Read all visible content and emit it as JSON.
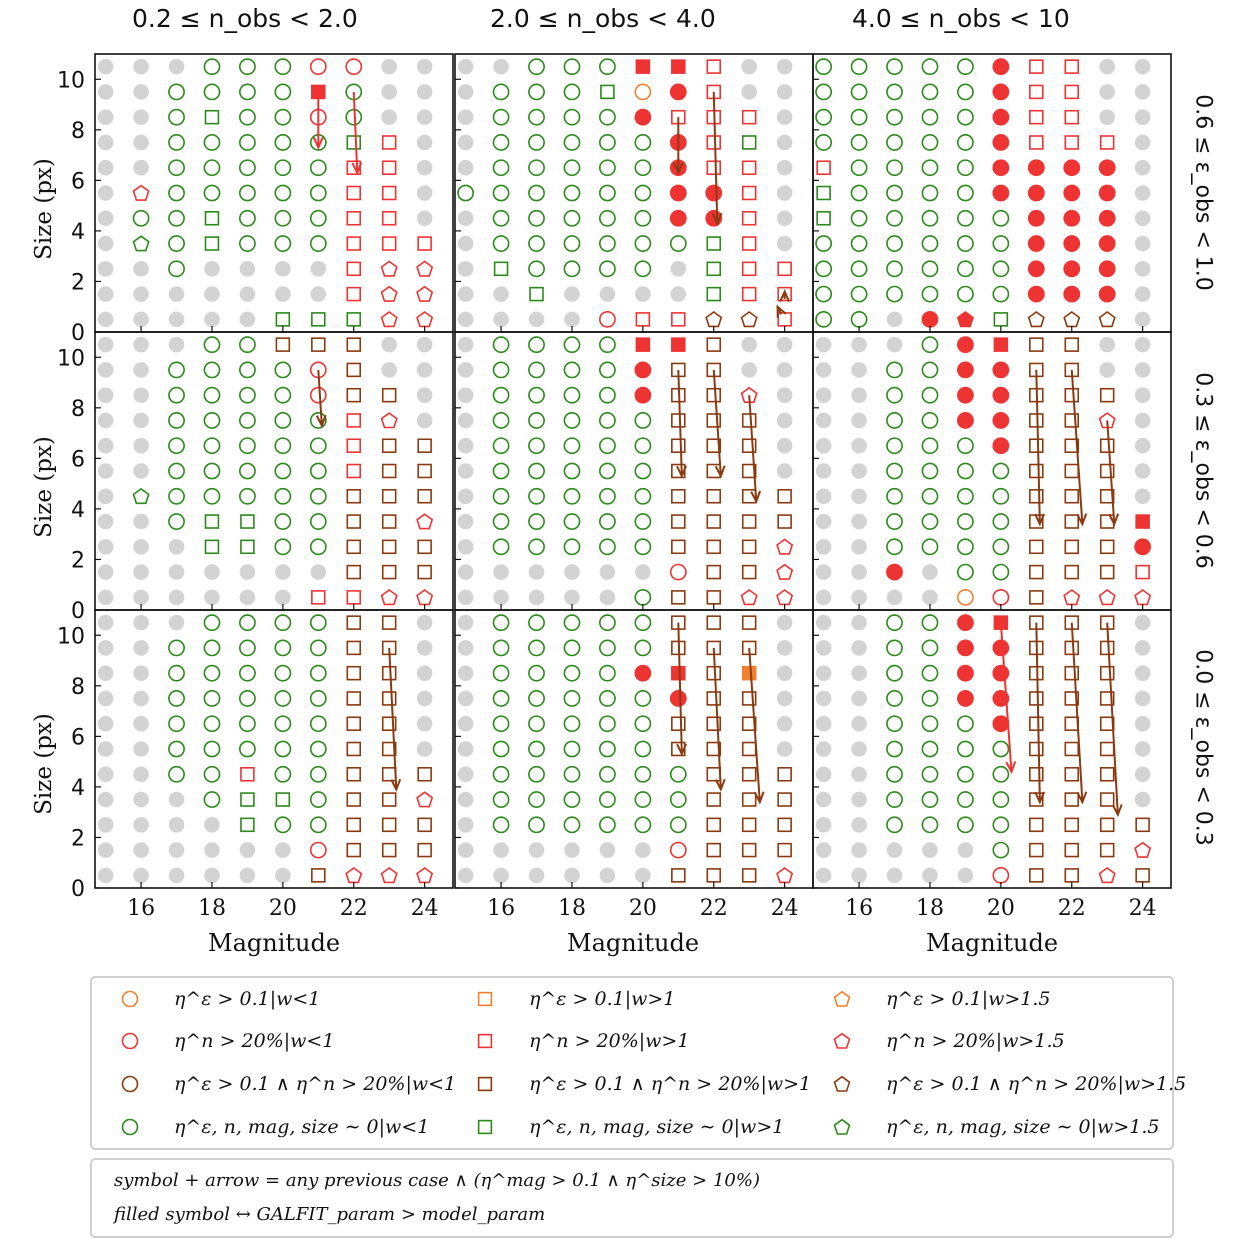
{
  "chart_data": {
    "type": "scatter",
    "column_titles": [
      "0.2 ≤ n_obs < 2.0",
      "2.0 ≤ n_obs < 4.0",
      "4.0 ≤ n_obs < 10"
    ],
    "row_titles": [
      "0.6 ≤ ε_obs < 1.0",
      "0.3 ≤ ε_obs < 0.6",
      "0.0 ≤ ε_obs < 0.3"
    ],
    "xlabel": "Magnitude",
    "ylabel": "Size (px)",
    "xlim": [
      14.7,
      24.8
    ],
    "ylim": [
      0,
      11
    ],
    "xticks": [
      "16",
      "18",
      "20",
      "22",
      "24"
    ],
    "yticks": [
      "0",
      "2",
      "4",
      "6",
      "8",
      "10"
    ],
    "grid_magnitudes": [
      15,
      16,
      17,
      18,
      19,
      20,
      21,
      22,
      23,
      24
    ],
    "grid_sizes": [
      0.5,
      1.5,
      2.5,
      3.5,
      4.5,
      5.5,
      6.5,
      7.5,
      8.5,
      9.5,
      10.5
    ],
    "colors": {
      "empty": "#d3d3d3",
      "orange": "#f08030",
      "red": "#ee3333",
      "brown": "#8b3a10",
      "green": "#2a8a1a"
    },
    "legend": [
      {
        "shape": "circle",
        "color": "orange",
        "label": "η^ε > 0.1|w<1"
      },
      {
        "shape": "square",
        "color": "orange",
        "label": "η^ε > 0.1|w>1"
      },
      {
        "shape": "pentagon",
        "color": "orange",
        "label": "η^ε > 0.1|w>1.5"
      },
      {
        "shape": "circle",
        "color": "red",
        "label": "η^n > 20%|w<1"
      },
      {
        "shape": "square",
        "color": "red",
        "label": "η^n > 20%|w>1"
      },
      {
        "shape": "pentagon",
        "color": "red",
        "label": "η^n > 20%|w>1.5"
      },
      {
        "shape": "circle",
        "color": "brown",
        "label": "η^ε > 0.1 ∧ η^n > 20%|w<1"
      },
      {
        "shape": "square",
        "color": "brown",
        "label": "η^ε > 0.1 ∧ η^n > 20%|w>1"
      },
      {
        "shape": "pentagon",
        "color": "brown",
        "label": "η^ε > 0.1 ∧ η^n > 20%|w>1.5"
      },
      {
        "shape": "circle",
        "color": "green",
        "label": "η^ε, n, mag, size ∼ 0|w<1"
      },
      {
        "shape": "square",
        "color": "green",
        "label": "η^ε, n, mag, size ∼ 0|w>1"
      },
      {
        "shape": "pentagon",
        "color": "green",
        "label": "η^ε, n, mag, size ∼ 0|w>1.5"
      }
    ],
    "notes": [
      "symbol + arrow = any previous case ∧ (η^mag > 0.1 ∧ η^size > 10%)",
      "filled symbol ↔ GALFIT_param > model_param"
    ],
    "panels": [
      {
        "row": 0,
        "col": 0,
        "cols": {
          "15": "...........",
          "16": "...GCP.....",
          "17": "..CCCCCCCC.",
          "18": "...SSCCCSCC",
          "19": "...CCCCCCCC",
          "20": "S..CCCCCCCC",
          "21": "S..CCCCCOFO",
          "22": "SQQQQQQSCCO",
          "23": "PPPQQQQQ...",
          "24": "PPPQ......."
        },
        "arrows": [
          {
            "color": "red",
            "x0": 21,
            "y0": 9.5,
            "x1": 21,
            "y1": 7.3
          },
          {
            "color": "red",
            "x0": 22,
            "y0": 9.5,
            "x1": 22.1,
            "y1": 6.3
          }
        ]
      },
      {
        "row": 0,
        "col": 1,
        "cols": {
          "15": ".....C.....",
          "16": "..SCCCCCCC.",
          "17": ".SCCCCCCCCC",
          "18": "..CCCCCCCCC",
          "19": "X.CCCCCCCSC",
          "20": "Q.CCCCCCfoF",
          "21": "Q..CffffQfF",
          "22": "YSSSffQQQQQ",
          "23": "YTTTTTTSQ..",
          "24": "QQQ........"
        },
        "arrows": [
          {
            "color": "brown",
            "x0": 21,
            "y0": 8.5,
            "x1": 21,
            "y1": 6.3
          },
          {
            "color": "brown",
            "x0": 22,
            "y0": 9.5,
            "x1": 22.1,
            "y1": 4.3
          },
          {
            "color": "brown",
            "x0": 23.9,
            "y0": 0.7,
            "x1": 23.8,
            "y1": 1.0
          },
          {
            "color": "brown",
            "x0": 24,
            "y0": 1.3,
            "x1": 24,
            "y1": 1.6
          }
        ]
      },
      {
        "row": 0,
        "col": 2,
        "cols": {
          "15": "CCCCSSQCCCC",
          "16": "CCCCCCCCCCC",
          "17": ".CCCCCCCCCC",
          "18": "fCCCCCCCCCC",
          "19": "JCCCCCCCCCC",
          "20": "SCCCCfffffff",
          "21": "YffffffQQQQ",
          "22": "YffffffQQQQQ",
          "23": "YffffffQ...",
          "24": "..........."
        },
        "arrows": []
      },
      {
        "row": 1,
        "col": 0,
        "cols": {
          "15": "...........",
          "16": "....G......",
          "17": "...CCCCCCC.",
          "18": "..SSCCCCCCC",
          "19": "..SSCCCCCCC",
          "20": "..CCCCCCCCB",
          "21": "Q.CCCCCCOOB",
          "22": "QBBBBQQQBBB",
          "23": "PBBBBBBPB..",
          "24": "PBBPBBB...."
        },
        "arrows": [
          {
            "color": "brown",
            "x0": 21,
            "y0": 9.5,
            "x1": 21.1,
            "y1": 7.3
          }
        ]
      },
      {
        "row": 1,
        "col": 1,
        "cols": {
          "15": "...........",
          "16": "..CCCCCCCCC",
          "17": "..CCCCCCCCC",
          "18": "..CCCCCCCCC",
          "19": "..CCCCCCCCC",
          "20": "C.CCCCCCffF",
          "21": "BOBBBBBBBBF",
          "22": "BBBBBBBBBBB",
          "23": "PBBBBBBBP..",
          "24": "PPPBB......"
        },
        "arrows": [
          {
            "color": "brown",
            "x0": 21,
            "y0": 9.5,
            "x1": 21.1,
            "y1": 5.3
          },
          {
            "color": "brown",
            "x0": 22,
            "y0": 9.5,
            "x1": 22.2,
            "y1": 5.3
          },
          {
            "color": "brown",
            "x0": 23,
            "y0": 8.5,
            "x1": 23.2,
            "y1": 4.3
          }
        ]
      },
      {
        "row": 1,
        "col": 2,
        "cols": {
          "15": "...........",
          "16": "..........",
          "17": ".fCCCCCCCC.",
          "18": "..CCCCCCCCC",
          "19": "oCCCCCCfffff",
          "20": "OCCCCCffffF",
          "21": "BBBBBBBBBBB",
          "22": "PBBBBBBBBBB",
          "23": "PBBBBBBPB..",
          "24": "PQfF......."
        },
        "arrows": [
          {
            "color": "brown",
            "x0": 21,
            "y0": 9.5,
            "x1": 21.1,
            "y1": 3.4
          },
          {
            "color": "brown",
            "x0": 22,
            "y0": 9.5,
            "x1": 22.3,
            "y1": 3.4
          },
          {
            "color": "brown",
            "x0": 23,
            "y0": 7.5,
            "x1": 23.2,
            "y1": 3.4
          }
        ]
      },
      {
        "row": 2,
        "col": 0,
        "cols": {
          "15": "...........",
          "16": "...........",
          "17": "....CCCCCC.",
          "18": "...CCCCCCCC",
          "19": "..SSQCCCCCC",
          "20": "..CSCCCCCCC",
          "21": "BOCCCCCCCCC",
          "22": "PBBBBBBBBBB",
          "23": "PBBBBBBBBBB",
          "24": "PBBPB......"
        },
        "arrows": [
          {
            "color": "brown",
            "x0": 23,
            "y0": 9.5,
            "x1": 23.2,
            "y1": 3.9
          }
        ]
      },
      {
        "row": 2,
        "col": 1,
        "cols": {
          "15": "...........",
          "16": "..CCCCCCCCC",
          "17": "..CCCCCCCCC",
          "18": "..CCCCCCCCC",
          "19": "..CCCCCCCCC",
          "20": "..CCCCCCfCC",
          "21": "BOCCCBBfFBB",
          "22": "BBBBBBBBBBB",
          "23": "BBBBBBBBqBB",
          "24": "PBBBB......"
        },
        "arrows": [
          {
            "color": "brown",
            "x0": 21,
            "y0": 10.5,
            "x1": 21.1,
            "y1": 5.3
          },
          {
            "color": "brown",
            "x0": 22,
            "y0": 9.5,
            "x1": 22.2,
            "y1": 3.9
          },
          {
            "color": "brown",
            "x0": 23,
            "y0": 9.5,
            "x1": 23.3,
            "y1": 3.4
          }
        ]
      },
      {
        "row": 2,
        "col": 2,
        "cols": {
          "15": "...........",
          "16": "...........",
          "17": "..CCCCCCCCC",
          "18": "..CCCCCCCCC",
          "19": "..CCCCCfffff",
          "20": "OCCCCCffffF",
          "21": "BBBBBBBBBBB",
          "22": "BBBBBBBBBBB",
          "23": "PBBBBBBBBBB",
          "24": "BPB........"
        },
        "arrows": [
          {
            "color": "red",
            "x0": 20,
            "y0": 10.5,
            "x1": 20.3,
            "y1": 4.6
          },
          {
            "color": "brown",
            "x0": 21,
            "y0": 10.5,
            "x1": 21.1,
            "y1": 3.4
          },
          {
            "color": "brown",
            "x0": 22,
            "y0": 10.5,
            "x1": 22.3,
            "y1": 3.4
          },
          {
            "color": "brown",
            "x0": 23,
            "y0": 10.5,
            "x1": 23.3,
            "y1": 2.9
          }
        ]
      }
    ]
  }
}
